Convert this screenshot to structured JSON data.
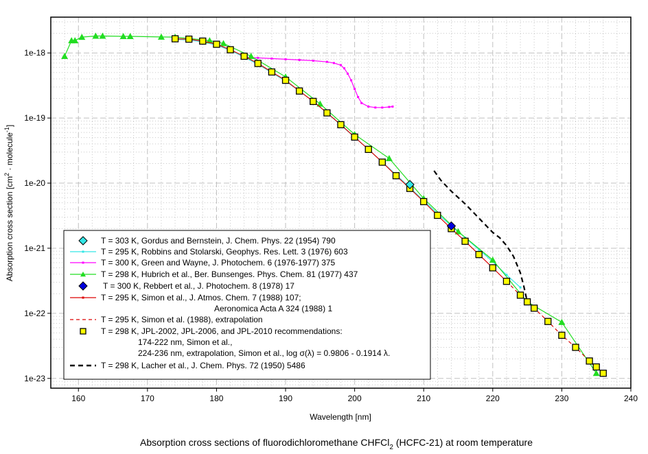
{
  "chart_data": {
    "type": "scatter",
    "title": "Absorption cross sections of fluorodichloromethane CHFCl",
    "title_subscript": "2",
    "title_suffix": " (HCFC-21) at room temperature",
    "xlabel": "Wavelength [nm]",
    "ylabel_parts": [
      "Absorption cross section [cm",
      "2",
      " · molecule",
      "-1",
      "]"
    ],
    "xlim": [
      156,
      240
    ],
    "ylim_log10": [
      -23.15,
      -17.45
    ],
    "yscale": "log",
    "grid": true,
    "legend_position": "bottom-left",
    "x_ticks": [
      160,
      170,
      180,
      190,
      200,
      210,
      220,
      230,
      240
    ],
    "y_ticks": [
      {
        "exp": -18,
        "label": "1e-18"
      },
      {
        "exp": -19,
        "label": "1e-19"
      },
      {
        "exp": -20,
        "label": "1e-20"
      },
      {
        "exp": -21,
        "label": "1e-21"
      },
      {
        "exp": -22,
        "label": "1e-22"
      },
      {
        "exp": -23,
        "label": "1e-23"
      }
    ],
    "series": [
      {
        "name": "gordus",
        "label": "T = 303 K, Gordus and Bernstein, J. Chem. Phys. 22 (1954) 790",
        "color": "#33e6e6",
        "style": "diamond",
        "points": [
          [
            208,
            9.5e-21
          ]
        ]
      },
      {
        "name": "robbins",
        "label": "T = 295 K, Robbins and Stolarski, Geophys. Res. Lett. 3 (1976) 603",
        "color": "#33e6e6",
        "style": "line-small",
        "points": [
          [
            174,
            1.62e-18
          ],
          [
            176,
            1.58e-18
          ],
          [
            178,
            1.48e-18
          ],
          [
            180,
            1.32e-18
          ],
          [
            182,
            1.1e-18
          ],
          [
            184,
            8.6e-19
          ],
          [
            186,
            6.7e-19
          ],
          [
            188,
            5e-19
          ],
          [
            190,
            3.7e-19
          ],
          [
            192,
            2.6e-19
          ],
          [
            194,
            1.8e-19
          ],
          [
            196,
            1.2e-19
          ],
          [
            198,
            7.8e-20
          ],
          [
            200,
            5.1e-20
          ],
          [
            202,
            3.3e-20
          ],
          [
            204,
            2.1e-20
          ],
          [
            206,
            1.35e-20
          ],
          [
            208,
            8.5e-21
          ],
          [
            210,
            5.4e-21
          ],
          [
            212,
            3.4e-21
          ],
          [
            214,
            2.2e-21
          ],
          [
            216,
            1.45e-21
          ],
          [
            218,
            9.5e-22
          ],
          [
            220,
            6.2e-22
          ],
          [
            222,
            3.9e-22
          ],
          [
            224,
            2.5e-22
          ]
        ]
      },
      {
        "name": "green",
        "label": "T = 300 K, Green and Wayne,  J. Photochem. 6 (1976-1977) 375",
        "color": "#ff00ff",
        "style": "line-small",
        "points": [
          [
            184,
            8.6e-19
          ],
          [
            186,
            8.4e-19
          ],
          [
            188,
            8.2e-19
          ],
          [
            190,
            8e-19
          ],
          [
            192,
            7.8e-19
          ],
          [
            194,
            7.6e-19
          ],
          [
            196,
            7.3e-19
          ],
          [
            197,
            7e-19
          ],
          [
            198,
            6.5e-19
          ],
          [
            198.5,
            5.8e-19
          ],
          [
            199,
            4.8e-19
          ],
          [
            199.5,
            3.8e-19
          ],
          [
            200,
            2.8e-19
          ],
          [
            200.5,
            2.1e-19
          ],
          [
            201,
            1.7e-19
          ],
          [
            202,
            1.5e-19
          ],
          [
            203,
            1.45e-19
          ],
          [
            204,
            1.45e-19
          ],
          [
            205,
            1.48e-19
          ],
          [
            205.5,
            1.5e-19
          ]
        ]
      },
      {
        "name": "hubrich",
        "label": "T = 298 K, Hubrich et al., Ber. Bunsenges. Phys. Chem. 81 (1977) 437",
        "color": "#22dd22",
        "style": "line-triangle",
        "points": [
          [
            158,
            8.9e-19
          ],
          [
            159,
            1.55e-18
          ],
          [
            159.5,
            1.55e-18
          ],
          [
            160.5,
            1.75e-18
          ],
          [
            162.5,
            1.82e-18
          ],
          [
            163.5,
            1.82e-18
          ],
          [
            166.5,
            1.8e-18
          ],
          [
            167.5,
            1.8e-18
          ],
          [
            172,
            1.76e-18
          ],
          [
            174,
            1.75e-18
          ],
          [
            179,
            1.55e-18
          ],
          [
            181,
            1.4e-18
          ],
          [
            185,
            8.9e-19
          ],
          [
            190,
            4.3e-19
          ],
          [
            195,
            1.65e-19
          ],
          [
            200,
            5.6e-20
          ],
          [
            205,
            2.4e-20
          ],
          [
            210,
            5.8e-21
          ],
          [
            215,
            1.8e-21
          ],
          [
            220,
            6.6e-22
          ],
          [
            225,
            1.5e-22
          ],
          [
            230,
            7.3e-23
          ],
          [
            235,
            1.2e-23
          ]
        ]
      },
      {
        "name": "rebbert",
        "label": "T = 300 K, Rebbert et al., J. Photochem. 8 (1978) 17",
        "color": "#0000dd",
        "style": "diamond",
        "points": [
          [
            214,
            2.2e-21
          ]
        ]
      },
      {
        "name": "simon",
        "label": "T = 295 K, Simon et al., J. Atmos. Chem. 7 (1988) 107;",
        "label2": "Aeronomica Acta A 324 (1988) 1",
        "color": "#dd0000",
        "style": "line-small",
        "points": [
          [
            174,
            1.65e-18
          ],
          [
            176,
            1.63e-18
          ],
          [
            178,
            1.52e-18
          ],
          [
            180,
            1.36e-18
          ],
          [
            182,
            1.12e-18
          ],
          [
            184,
            8.9e-19
          ],
          [
            186,
            6.9e-19
          ],
          [
            188,
            5.1e-19
          ],
          [
            190,
            3.8e-19
          ],
          [
            192,
            2.6e-19
          ],
          [
            194,
            1.8e-19
          ],
          [
            196,
            1.2e-19
          ],
          [
            198,
            7.9e-20
          ],
          [
            200,
            5.1e-20
          ],
          [
            202,
            3.3e-20
          ],
          [
            204,
            2.1e-20
          ],
          [
            206,
            1.3e-20
          ],
          [
            208,
            8.3e-21
          ],
          [
            210,
            5.2e-21
          ],
          [
            212,
            3.2e-21
          ],
          [
            214,
            2e-21
          ],
          [
            216,
            1.28e-21
          ],
          [
            218,
            8e-22
          ],
          [
            220,
            5e-22
          ],
          [
            222,
            3.1e-22
          ]
        ]
      },
      {
        "name": "simon-extrap",
        "label": "T = 295 K, Simon et al. (1988), extrapolation",
        "color": "#dd0000",
        "style": "dashed",
        "points": [
          [
            222,
            3.1e-22
          ],
          [
            224,
            1.9e-22
          ],
          [
            226,
            1.2e-22
          ],
          [
            228,
            7.5e-23
          ],
          [
            230,
            4.6e-23
          ],
          [
            232,
            3e-23
          ],
          [
            234,
            1.85e-23
          ],
          [
            235,
            1.5e-23
          ],
          [
            236,
            1.2e-23
          ]
        ]
      },
      {
        "name": "jpl",
        "label": "T = 298 K, JPL-2002, JPL-2006, and JPL-2010 recommendations:",
        "label2": "174-222 nm, Simon et al.,",
        "label3": "224-236 nm, extrapolation, Simon et al., log σ(λ) = 0.9806 - 0.1914 λ.",
        "color": "#ffff00",
        "style": "square",
        "points": [
          [
            174,
            1.65e-18
          ],
          [
            176,
            1.63e-18
          ],
          [
            178,
            1.52e-18
          ],
          [
            180,
            1.36e-18
          ],
          [
            182,
            1.12e-18
          ],
          [
            184,
            8.9e-19
          ],
          [
            186,
            6.9e-19
          ],
          [
            188,
            5.1e-19
          ],
          [
            190,
            3.8e-19
          ],
          [
            192,
            2.6e-19
          ],
          [
            194,
            1.8e-19
          ],
          [
            196,
            1.2e-19
          ],
          [
            198,
            7.9e-20
          ],
          [
            200,
            5.1e-20
          ],
          [
            202,
            3.3e-20
          ],
          [
            204,
            2.1e-20
          ],
          [
            206,
            1.3e-20
          ],
          [
            208,
            8.3e-21
          ],
          [
            210,
            5.2e-21
          ],
          [
            212,
            3.2e-21
          ],
          [
            214,
            2e-21
          ],
          [
            216,
            1.28e-21
          ],
          [
            218,
            8e-22
          ],
          [
            220,
            5e-22
          ],
          [
            222,
            3.1e-22
          ],
          [
            224,
            1.9e-22
          ],
          [
            225,
            1.5e-22
          ],
          [
            226,
            1.2e-22
          ],
          [
            228,
            7.5e-23
          ],
          [
            230,
            4.6e-23
          ],
          [
            232,
            3e-23
          ],
          [
            234,
            1.85e-23
          ],
          [
            235,
            1.5e-23
          ],
          [
            236,
            1.2e-23
          ]
        ]
      },
      {
        "name": "lacher",
        "label": "T = 298 K, Lacher et al., J. Chem. Phys. 72 (1950) 5486",
        "color": "#000000",
        "style": "bold-dashed",
        "points": [
          [
            211.5,
            1.55e-20
          ],
          [
            212.5,
            1.1e-20
          ],
          [
            214,
            7.5e-21
          ],
          [
            216,
            4.8e-21
          ],
          [
            218,
            2.9e-21
          ],
          [
            220,
            1.75e-21
          ],
          [
            221,
            1.45e-21
          ],
          [
            222,
            1.1e-21
          ],
          [
            223,
            7.5e-22
          ],
          [
            224,
            4.2e-22
          ],
          [
            224.5,
            2.6e-22
          ],
          [
            225,
            1.5e-22
          ]
        ]
      }
    ]
  }
}
